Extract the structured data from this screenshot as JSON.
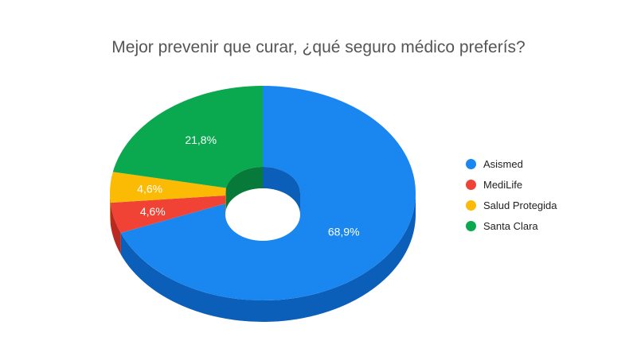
{
  "chart_data": {
    "type": "pie",
    "style": "3d-donut",
    "title": "Mejor prevenir que curar, ¿qué seguro médico preferís?",
    "legend_position": "right",
    "series": [
      {
        "name": "Asismed",
        "value": 68.9,
        "label": "68,9%",
        "color": "#1a87f0",
        "side_color": "#0c5fb8"
      },
      {
        "name": "MediLife",
        "value": 4.6,
        "label": "4,6%",
        "color": "#f04336",
        "side_color": "#b82a20"
      },
      {
        "name": "Salud Protegida",
        "value": 4.6,
        "label": "4,6%",
        "color": "#fbbb05",
        "side_color": "#b8890a"
      },
      {
        "name": "Santa Clara",
        "value": 21.8,
        "label": "21,8%",
        "color": "#0aa84f",
        "side_color": "#077a3a"
      }
    ]
  }
}
